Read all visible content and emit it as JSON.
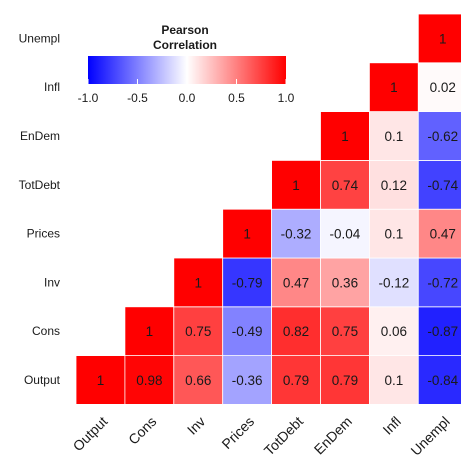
{
  "chart_data": {
    "type": "heatmap",
    "variables": [
      "Output",
      "Cons",
      "Inv",
      "Prices",
      "TotDebt",
      "EnDem",
      "Infl",
      "Unempl"
    ],
    "matrix": [
      [
        1
      ],
      [
        0.98,
        1
      ],
      [
        0.66,
        0.75,
        1
      ],
      [
        -0.36,
        -0.49,
        -0.79,
        1
      ],
      [
        0.79,
        0.82,
        0.47,
        -0.32,
        1
      ],
      [
        0.79,
        0.75,
        0.36,
        -0.04,
        0.74,
        1
      ],
      [
        0.1,
        0.06,
        -0.12,
        0.1,
        0.12,
        0.1,
        1
      ],
      [
        -0.84,
        -0.87,
        -0.72,
        0.47,
        -0.74,
        -0.62,
        0.02,
        1
      ]
    ],
    "legend": {
      "title_line1": "Pearson",
      "title_line2": "Correlation",
      "ticks": [
        "-1.0",
        "-0.5",
        "0.0",
        "0.5",
        "1.0"
      ],
      "tick_values": [
        -1,
        -0.5,
        0,
        0.5,
        1
      ],
      "placement": "top-left"
    },
    "scale": {
      "low": "#0000ff",
      "mid": "#ffffff",
      "high": "#ff0000",
      "limits": [
        -1,
        1
      ]
    },
    "grid": false
  }
}
